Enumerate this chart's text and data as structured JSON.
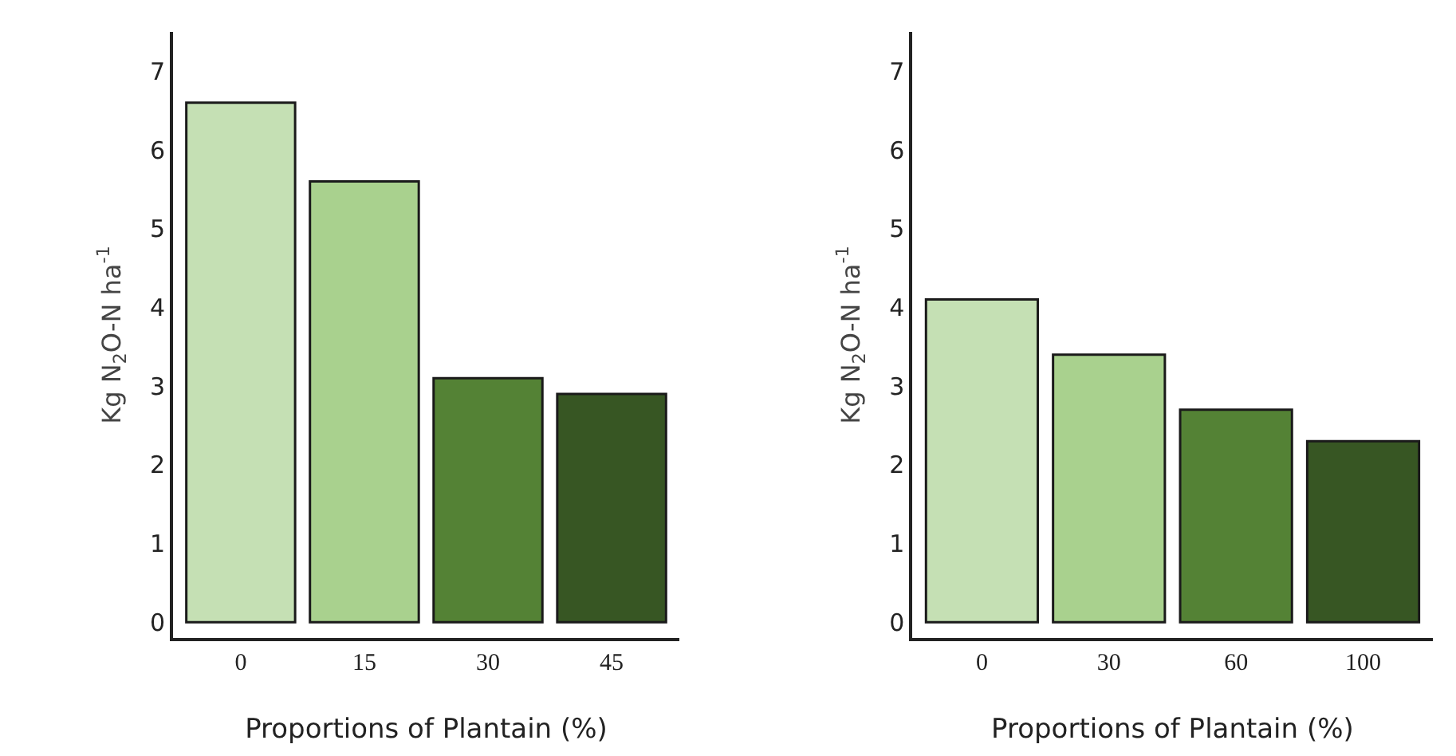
{
  "chart_data": [
    {
      "type": "bar",
      "xlabel": "Proportions of Plantain (%)",
      "ylabel": "Kg N$_{2}$O-N ha$^{-1}$",
      "categories": [
        "0",
        "15",
        "30",
        "45"
      ],
      "values": [
        6.6,
        5.6,
        3.1,
        2.9
      ],
      "colors": [
        "#c5e0b4",
        "#a9d18e",
        "#548235",
        "#375623"
      ],
      "ylim": [
        -0.2,
        7.5
      ],
      "yticks": [
        0,
        1,
        2,
        3,
        4,
        5,
        6,
        7
      ]
    },
    {
      "type": "bar",
      "xlabel": "Proportions of Plantain (%)",
      "ylabel": "Kg N$_{2}$O-N ha$^{-1}$",
      "categories": [
        "0",
        "30",
        "60",
        "100"
      ],
      "values": [
        4.1,
        3.4,
        2.7,
        2.3
      ],
      "colors": [
        "#c5e0b4",
        "#a9d18e",
        "#548235",
        "#375623"
      ],
      "ylim": [
        -0.2,
        7.5
      ],
      "yticks": [
        0,
        1,
        2,
        3,
        4,
        5,
        6,
        7
      ]
    }
  ]
}
